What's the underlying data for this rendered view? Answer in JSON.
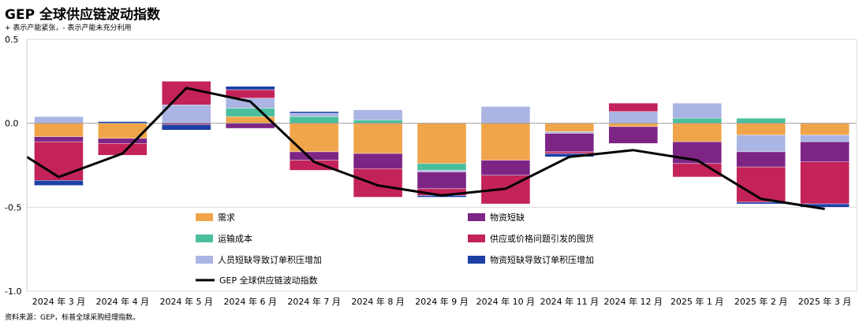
{
  "title": "GEP 全球供应链波动指数",
  "subtitle": "+ 表示产能紧张，- 表示产能未充分利用",
  "source": "资料来源：GEP，标普全球采购经理指数。",
  "chart_data": {
    "type": "bar",
    "stacked": true,
    "ylim": [
      -1.0,
      0.5
    ],
    "yticks": [
      "0.5",
      "0.0",
      "-0.5",
      "-1.0"
    ],
    "ytick_values": [
      0.5,
      0.0,
      -0.5,
      -1.0
    ],
    "grid": "horizontal",
    "categories": [
      "2024 年 3 月",
      "2024 年 4 月",
      "2024 年 5 月",
      "2024 年 6 月",
      "2024 年 7 月",
      "2024 年 8 月",
      "2024 年 9 月",
      "2024 年 10 月",
      "2024 年 11 月",
      "2024 年 12 月",
      "2025 年 1 月",
      "2025 年 2 月",
      "2025 年 3 月"
    ],
    "series": [
      {
        "name": "需求",
        "color": "#F0A54A",
        "values": [
          -0.08,
          -0.09,
          0.0,
          0.04,
          -0.17,
          -0.18,
          -0.24,
          -0.22,
          -0.05,
          -0.02,
          -0.11,
          -0.07,
          -0.07
        ]
      },
      {
        "name": "运输成本",
        "color": "#4BBE9E",
        "values": [
          0.0,
          0.0,
          0.0,
          0.05,
          0.04,
          0.02,
          -0.04,
          0.0,
          0.0,
          0.0,
          0.03,
          0.03,
          0.0
        ]
      },
      {
        "name": "人员短缺导致订单积压增加",
        "color": "#ABB5E3",
        "values": [
          0.04,
          0.0,
          0.11,
          0.06,
          0.02,
          0.06,
          -0.01,
          0.1,
          -0.01,
          0.07,
          0.09,
          -0.1,
          -0.04
        ]
      },
      {
        "name": "物资短缺",
        "color": "#7D2585",
        "values": [
          -0.03,
          -0.03,
          -0.01,
          -0.03,
          -0.05,
          -0.09,
          -0.1,
          -0.09,
          -0.11,
          -0.1,
          -0.13,
          -0.09,
          -0.12
        ]
      },
      {
        "name": "供应或价格问题引发的囤货",
        "color": "#C3235A",
        "values": [
          -0.23,
          -0.07,
          0.14,
          0.05,
          -0.06,
          -0.17,
          -0.04,
          -0.17,
          -0.01,
          0.05,
          -0.08,
          -0.21,
          -0.25
        ]
      },
      {
        "name": "物资短缺导致订单积压增加",
        "color": "#1C3FA5",
        "values": [
          -0.03,
          0.01,
          -0.03,
          0.02,
          0.01,
          0.0,
          -0.01,
          0.0,
          -0.02,
          0.0,
          0.0,
          -0.01,
          -0.02
        ]
      }
    ],
    "line": {
      "name": "GEP 全球供应链波动指数",
      "color": "#000000",
      "values": [
        -0.32,
        -0.18,
        0.21,
        0.13,
        -0.23,
        -0.37,
        -0.43,
        -0.39,
        -0.2,
        -0.16,
        -0.22,
        -0.45,
        -0.51
      ]
    },
    "line_start_value": -0.2
  }
}
